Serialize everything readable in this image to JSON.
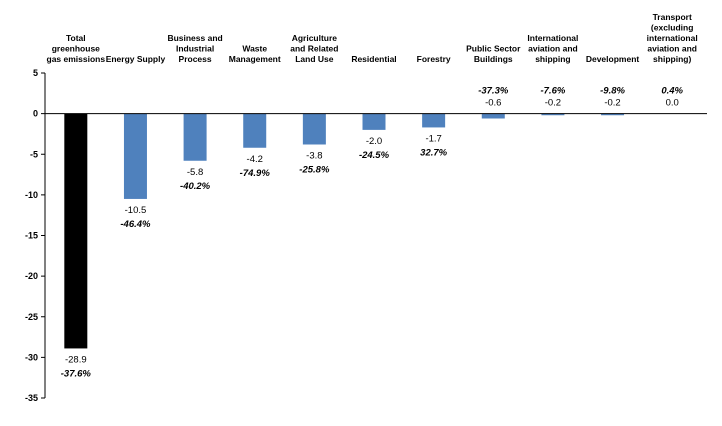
{
  "chart_data": {
    "type": "bar",
    "categories": [
      [
        "Total",
        "greenhouse",
        "gas emissions"
      ],
      [
        "Energy Supply"
      ],
      [
        "Business and",
        "Industrial",
        "Process"
      ],
      [
        "Waste",
        "Management"
      ],
      [
        "Agriculture",
        "and Related",
        "Land Use"
      ],
      [
        "Residential"
      ],
      [
        "Forestry"
      ],
      [
        "Public Sector",
        "Buildings"
      ],
      [
        "International",
        "aviation and",
        "shipping"
      ],
      [
        "Development"
      ],
      [
        "Transport",
        "(excluding",
        "international",
        "aviation and",
        "shipping)"
      ]
    ],
    "values": [
      -28.9,
      -10.5,
      -5.8,
      -4.2,
      -3.8,
      -2.0,
      -1.7,
      -0.6,
      -0.2,
      -0.2,
      0.0
    ],
    "value_labels": [
      "-28.9",
      "-10.5",
      "-5.8",
      "-4.2",
      "-3.8",
      "-2.0",
      "-1.7",
      "-0.6",
      "-0.2",
      "-0.2",
      "0.0"
    ],
    "percent_labels": [
      "-37.6%",
      "-46.4%",
      "-40.2%",
      "-74.9%",
      "-25.8%",
      "-24.5%",
      "32.7%",
      "-37.3%",
      "-7.6%",
      "-9.8%",
      "0.4%"
    ],
    "bar_colors": [
      "#000000",
      "#4f81bd",
      "#4f81bd",
      "#4f81bd",
      "#4f81bd",
      "#4f81bd",
      "#4f81bd",
      "#4f81bd",
      "#4f81bd",
      "#4f81bd",
      "#4f81bd"
    ],
    "yticks": [
      5,
      0,
      -5,
      -10,
      -15,
      -20,
      -25,
      -30,
      -35
    ],
    "ytick_labels": [
      "5",
      "0",
      "-5",
      "-10",
      "-15",
      "-20",
      "-25",
      "-30",
      "-35"
    ],
    "ylim": [
      -35,
      5
    ],
    "grid": false,
    "legend": "none",
    "title": "",
    "xlabel": "",
    "ylabel": ""
  }
}
